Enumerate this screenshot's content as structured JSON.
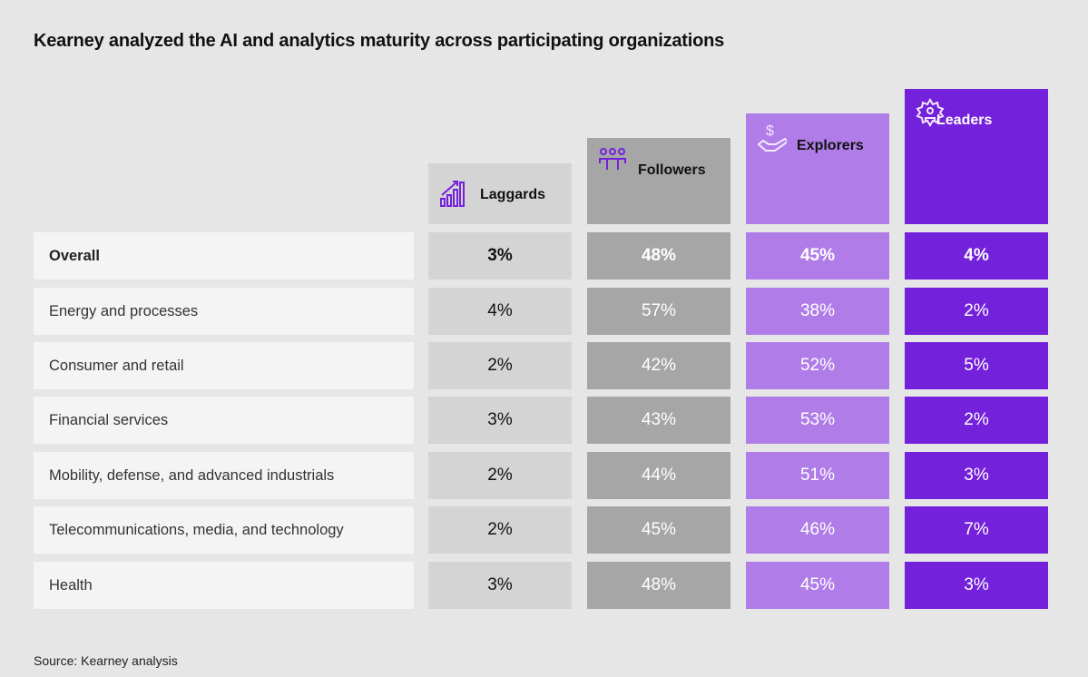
{
  "title": "Kearney analyzed the AI and analytics maturity across participating organizations",
  "source": "Source: Kearney analysis",
  "colors": {
    "background": "#e6e6e6",
    "label_cell": "#f4f4f4",
    "laggards": "#d4d4d4",
    "followers": "#a6a6a6",
    "explorers": "#b07de8",
    "leaders": "#7421db"
  },
  "chart_data": {
    "type": "table",
    "title": "Kearney analyzed the AI and analytics maturity across participating organizations",
    "columns": [
      {
        "name": "Laggards",
        "icon": "bar-chart-growth-icon"
      },
      {
        "name": "Followers",
        "icon": "people-group-icon"
      },
      {
        "name": "Explorers",
        "icon": "hand-dollar-icon"
      },
      {
        "name": "Leaders",
        "icon": "gear-person-icon"
      }
    ],
    "rows": [
      {
        "label": "Overall",
        "values": [
          "3%",
          "48%",
          "45%",
          "4%"
        ]
      },
      {
        "label": "Energy and processes",
        "values": [
          "4%",
          "57%",
          "38%",
          "2%"
        ]
      },
      {
        "label": "Consumer and retail",
        "values": [
          "2%",
          "42%",
          "52%",
          "5%"
        ]
      },
      {
        "label": "Financial services",
        "values": [
          "3%",
          "43%",
          "53%",
          "2%"
        ]
      },
      {
        "label": "Mobility, defense, and advanced industrials",
        "values": [
          "2%",
          "44%",
          "51%",
          "3%"
        ]
      },
      {
        "label": "Telecommunications, media, and technology",
        "values": [
          "2%",
          "45%",
          "46%",
          "7%"
        ]
      },
      {
        "label": "Health",
        "values": [
          "3%",
          "48%",
          "45%",
          "3%"
        ]
      }
    ]
  }
}
